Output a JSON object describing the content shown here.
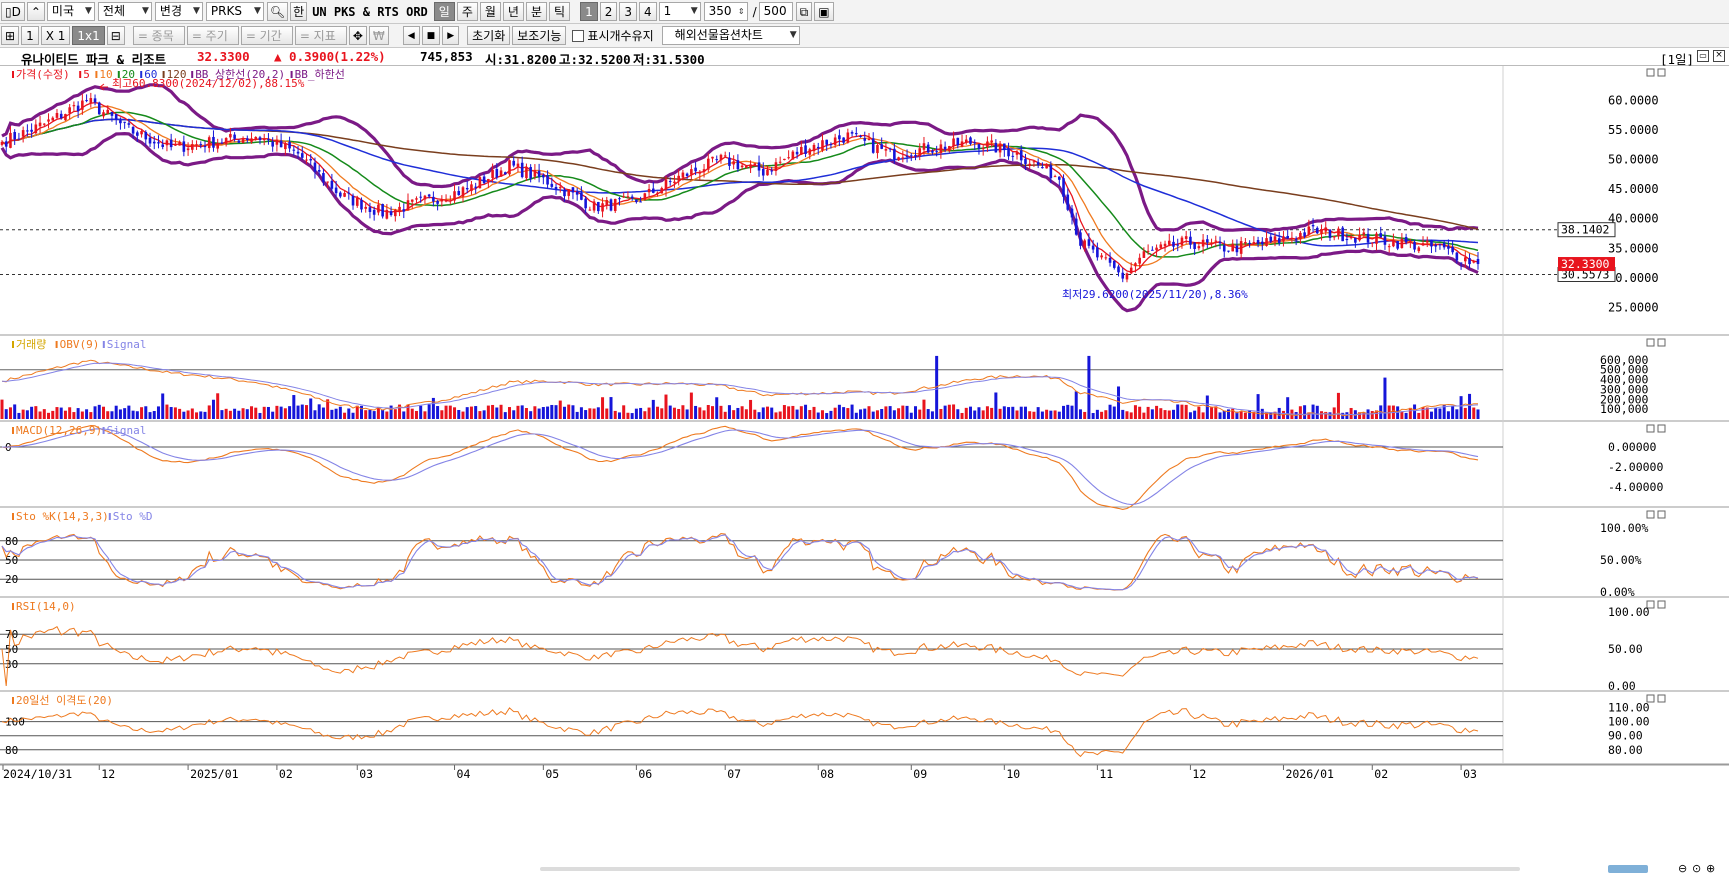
{
  "toolbar1": {
    "code_btn": "▯D",
    "market": "미국",
    "scope": "전체",
    "change": "변경",
    "ticker": "PRKS",
    "han_btn": "한",
    "symbol_text": "UN PKS & RTS ORD",
    "periods": [
      "일",
      "주",
      "월",
      "년",
      "분",
      "틱"
    ],
    "active_period": "일",
    "numbers": [
      "1",
      "2",
      "3",
      "4"
    ],
    "active_number": "1",
    "interval": "1",
    "count": "350",
    "slash": "/",
    "max": "500"
  },
  "toolbar2": {
    "views": [
      "1",
      "X 1",
      "1x1"
    ],
    "active_view": "1x1",
    "eq_items": "= 종목",
    "eq_period": "= 주기",
    "eq_term": "= 기간",
    "eq_indicator": "= 지표",
    "reset_btn": "초기화",
    "aux_btn": "보조기능",
    "keep_label": "표시개수유지",
    "futures_select": "해외선물옵션차트"
  },
  "info": {
    "name": "유나이티드 파크 & 리조트",
    "price": "32.3300",
    "change": "▲ 0.3900",
    "pct": "(1.22%)",
    "volume": "745,853",
    "open": "시:31.8200",
    "high": "고:32.5200",
    "low": "저:31.5300",
    "period_tag": "[1일]"
  },
  "colors": {
    "up": "#e8141e",
    "down": "#1515d9",
    "ma5": "#e8141e",
    "ma10": "#f07a20",
    "ma20": "#158a1a",
    "ma60": "#1f2ed8",
    "ma120": "#7a3e1e",
    "bb": "#7b1a86",
    "orange": "#ee7a20",
    "signal": "#8484e6"
  },
  "chart_data": [
    {
      "type": "candlestick",
      "legend": [
        "가격(수정)",
        "5",
        "10",
        "20",
        "60",
        "120",
        "BB_상한선(20,2)",
        "BB_하한선"
      ],
      "y_ticks": [
        "60.0000",
        "55.0000",
        "50.0000",
        "45.0000",
        "40.0000",
        "35.0000",
        "30.0000",
        "25.0000"
      ],
      "ylim": [
        21.5,
        64.5
      ],
      "max_label": "최고60.8300(2024/12/02),88.15%",
      "min_label": "최저29.6200(2025/11/20),8.36%",
      "ref_lines": [
        38.1402,
        30.5573
      ],
      "ref_labels": [
        "38.1402",
        "30.5573"
      ],
      "last_price_label": "32.3300",
      "close_anchors": [
        [
          0,
          53
        ],
        [
          10,
          56
        ],
        [
          20,
          60
        ],
        [
          30,
          55
        ],
        [
          40,
          52
        ],
        [
          50,
          53
        ],
        [
          60,
          54
        ],
        [
          70,
          51
        ],
        [
          80,
          44
        ],
        [
          90,
          41
        ],
        [
          95,
          42
        ],
        [
          100,
          43
        ],
        [
          110,
          45
        ],
        [
          120,
          49
        ],
        [
          130,
          46
        ],
        [
          140,
          42
        ],
        [
          150,
          43
        ],
        [
          160,
          47
        ],
        [
          170,
          50
        ],
        [
          180,
          48
        ],
        [
          190,
          52
        ],
        [
          200,
          54
        ],
        [
          210,
          51
        ],
        [
          220,
          52
        ],
        [
          230,
          53
        ],
        [
          240,
          51
        ],
        [
          250,
          47
        ],
        [
          255,
          36
        ],
        [
          260,
          33
        ],
        [
          265,
          30.2
        ],
        [
          270,
          34
        ],
        [
          280,
          36
        ],
        [
          290,
          35
        ],
        [
          300,
          36
        ],
        [
          310,
          38
        ],
        [
          320,
          37
        ],
        [
          330,
          36
        ],
        [
          340,
          35
        ],
        [
          349,
          32.33
        ]
      ]
    },
    {
      "type": "bar+line",
      "legend": [
        "거래량",
        "OBV(9)",
        "Signal"
      ],
      "y_ticks": [
        "600,000",
        "500,000",
        "400,000",
        "300,000",
        "200,000",
        "100,000"
      ],
      "ylim": [
        0,
        700000
      ]
    },
    {
      "type": "line",
      "legend": [
        "MACD(12,26,9)",
        "Signal"
      ],
      "y_ticks": [
        "0.00000",
        "-2.00000",
        "-4.00000"
      ],
      "left_tick": "0",
      "ylim": [
        -5.5,
        1.5
      ]
    },
    {
      "type": "line",
      "legend": [
        "Sto %K(14,3,3)",
        "Sto %D"
      ],
      "y_ticks": [
        "100.00%",
        "50.00%",
        "0.00%"
      ],
      "left_ticks": [
        "80",
        "50",
        "20"
      ],
      "ylim": [
        0,
        100
      ]
    },
    {
      "type": "line",
      "legend": [
        "RSI(14,0)"
      ],
      "y_ticks": [
        "100.00",
        "50.00",
        "0.00"
      ],
      "left_ticks": [
        "70",
        "50",
        "30"
      ],
      "ylim": [
        0,
        100
      ]
    },
    {
      "type": "line",
      "legend": [
        "20일선 이격도(20)"
      ],
      "y_ticks": [
        "110.00",
        "100.00",
        "90.00",
        "80.00"
      ],
      "left_ticks": [
        "100",
        "80"
      ],
      "ylim": [
        72,
        114
      ]
    }
  ],
  "x_axis": [
    "2024/10/31",
    "12",
    "2025/01",
    "02",
    "03",
    "04",
    "05",
    "06",
    "07",
    "08",
    "09",
    "10",
    "11",
    "12",
    "2026/01",
    "02",
    "03"
  ]
}
